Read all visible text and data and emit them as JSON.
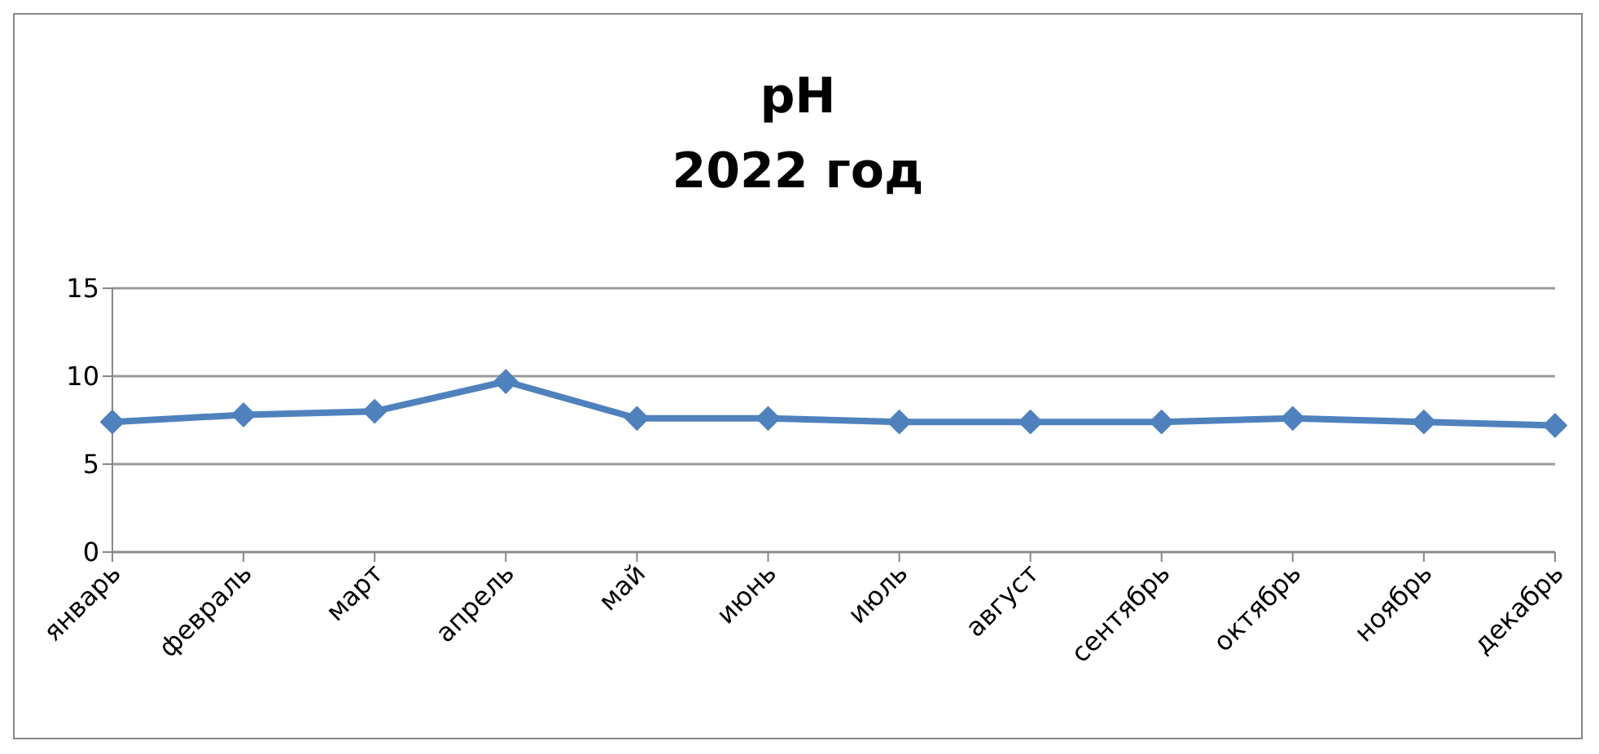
{
  "chart_data": {
    "type": "line",
    "title": "pH\n2022 год",
    "categories": [
      "январь",
      "февраль",
      "март",
      "апрель",
      "май",
      "июнь",
      "июль",
      "август",
      "сентябрь",
      "октябрь",
      "ноябрь",
      "декабрь"
    ],
    "series": [
      {
        "color": "#4f81bd",
        "values": [
          7.4,
          7.8,
          8.0,
          9.7,
          7.6,
          7.6,
          7.4,
          7.4,
          7.4,
          7.6,
          7.4,
          7.2
        ]
      }
    ],
    "ylim": [
      0,
      15
    ],
    "yticks": [
      0,
      5,
      10,
      15
    ],
    "grid": "y",
    "marker": "diamond",
    "legend": false
  }
}
